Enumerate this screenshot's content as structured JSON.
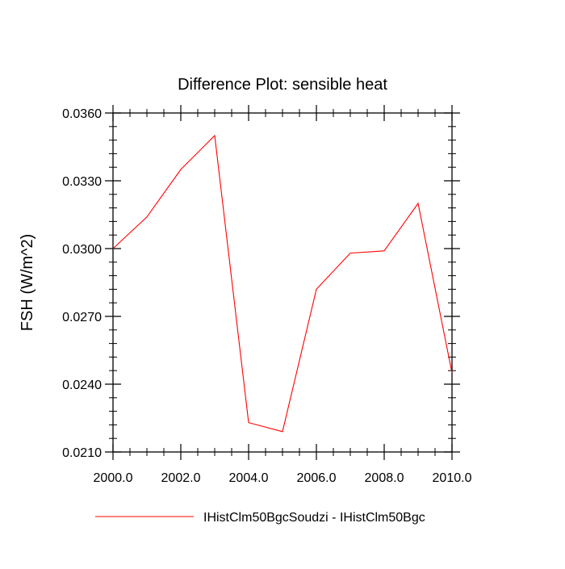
{
  "chart_data": {
    "type": "line",
    "title": "Difference Plot: sensible heat",
    "xlabel": "",
    "ylabel": "FSH  (W/m^2)",
    "xlim": [
      2000,
      2010
    ],
    "ylim": [
      0.021,
      0.036
    ],
    "xticks": [
      2000,
      2002,
      2004,
      2006,
      2008,
      2010
    ],
    "xtick_labels": [
      "2000.0",
      "2002.0",
      "2004.0",
      "2006.0",
      "2008.0",
      "2010.0"
    ],
    "yticks": [
      0.021,
      0.024,
      0.027,
      0.03,
      0.033,
      0.036
    ],
    "ytick_labels": [
      "0.0210",
      "0.0240",
      "0.0270",
      "0.0300",
      "0.0330",
      "0.0360"
    ],
    "grid": false,
    "legend_position": "bottom",
    "series": [
      {
        "name": "IHistClm50BgcSoudzi - IHistClm50Bgc",
        "color": "#ff0000",
        "x": [
          2000,
          2001,
          2002,
          2003,
          2004,
          2005,
          2006,
          2007,
          2008,
          2009,
          2010
        ],
        "y": [
          0.03,
          0.0314,
          0.0335,
          0.035,
          0.0223,
          0.0219,
          0.0282,
          0.0298,
          0.0299,
          0.032,
          0.0245
        ]
      }
    ]
  }
}
